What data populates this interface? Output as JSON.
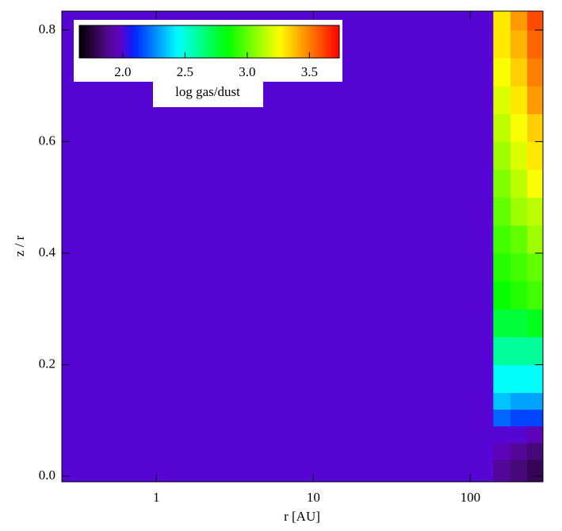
{
  "chart_data": {
    "type": "heatmap",
    "xlabel": "r [AU]",
    "ylabel": "z / r",
    "xlog": true,
    "xlim": [
      0.25,
      290
    ],
    "ylim": [
      -0.01,
      0.834
    ],
    "xticks": [
      1,
      10,
      100
    ],
    "yticks": [
      {
        "value": 0,
        "label": "0.0"
      },
      {
        "value": 0.2,
        "label": "0.2"
      },
      {
        "value": 0.4,
        "label": "0.4"
      },
      {
        "value": 0.6,
        "label": "0.6"
      },
      {
        "value": 0.8,
        "label": "0.8"
      }
    ],
    "x_edges": [
      0.25,
      140,
      180,
      230,
      290
    ],
    "y_edges": [
      -0.01,
      0.03,
      0.06,
      0.09,
      0.12,
      0.15,
      0.2,
      0.25,
      0.3,
      0.35,
      0.4,
      0.45,
      0.5,
      0.55,
      0.6,
      0.65,
      0.7,
      0.75,
      0.8,
      0.834
    ],
    "values": [
      [
        2.0,
        1.9,
        1.85,
        1.8
      ],
      [
        2.0,
        1.95,
        1.9,
        1.85
      ],
      [
        2.0,
        2.0,
        2.0,
        1.95
      ],
      [
        2.0,
        2.2,
        2.15,
        2.15
      ],
      [
        2.0,
        2.35,
        2.3,
        2.3
      ],
      [
        2.0,
        2.45,
        2.45,
        2.45
      ],
      [
        2.0,
        2.6,
        2.6,
        2.6
      ],
      [
        2.0,
        2.75,
        2.75,
        2.8
      ],
      [
        2.0,
        2.85,
        2.9,
        2.95
      ],
      [
        2.0,
        2.9,
        2.95,
        3.0
      ],
      [
        2.0,
        2.95,
        3.0,
        3.1
      ],
      [
        2.0,
        3.0,
        3.1,
        3.15
      ],
      [
        2.0,
        3.05,
        3.15,
        3.25
      ],
      [
        2.0,
        3.1,
        3.2,
        3.3
      ],
      [
        2.0,
        3.15,
        3.25,
        3.35
      ],
      [
        2.0,
        3.2,
        3.3,
        3.45
      ],
      [
        2.0,
        3.25,
        3.35,
        3.5
      ],
      [
        2.0,
        3.3,
        3.4,
        3.55
      ],
      [
        2.0,
        3.3,
        3.45,
        3.6
      ]
    ],
    "colormap": "rainbow",
    "colorbar": {
      "label": "log gas/dust",
      "clim": [
        1.65,
        3.74
      ],
      "ticks": [
        {
          "value": 2,
          "label": "2.0"
        },
        {
          "value": 2.5,
          "label": "2.5"
        },
        {
          "value": 3,
          "label": "3.0"
        },
        {
          "value": 3.5,
          "label": "3.5"
        }
      ]
    }
  }
}
